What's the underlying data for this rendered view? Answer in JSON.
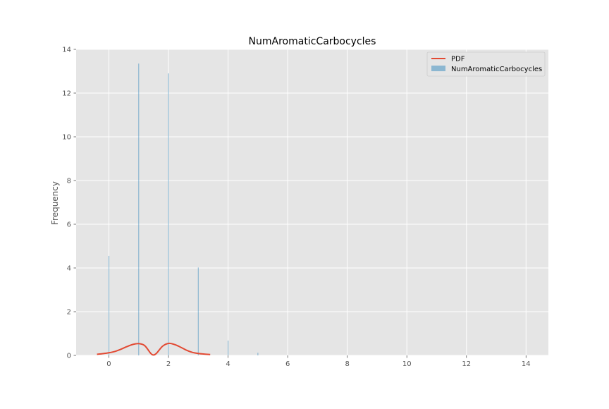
{
  "chart_data": {
    "type": "bar",
    "title": "NumAromaticCarbocycles",
    "xlabel": "",
    "ylabel": "Frequency",
    "xlim": [
      -1.1,
      14.75
    ],
    "ylim": [
      0,
      14
    ],
    "x_ticks": [
      0,
      2,
      4,
      6,
      8,
      10,
      12,
      14
    ],
    "y_ticks": [
      0,
      2,
      4,
      6,
      8,
      10,
      12,
      14
    ],
    "grid": true,
    "legend_position": "top-right",
    "legend": [
      "PDF",
      "NumAromaticCarbocycles"
    ],
    "colors": {
      "histogram": "#348ABD",
      "pdf": "#E24A33",
      "background": "#E5E5E5",
      "grid": "#FFFFFF"
    },
    "histogram": {
      "name": "NumAromaticCarbocycles",
      "bin_width": 0.028,
      "x": [
        0,
        1,
        2,
        3,
        4,
        5
      ],
      "values": [
        4.55,
        13.35,
        12.9,
        4.02,
        0.68,
        0.12
      ]
    },
    "pdf": {
      "name": "PDF",
      "x": [
        -0.4,
        -0.2,
        0.0,
        0.2,
        0.4,
        0.6,
        0.8,
        1.0,
        1.2,
        1.4,
        1.5,
        1.6,
        1.8,
        2.0,
        2.2,
        2.4,
        2.6,
        2.8,
        3.0,
        3.2,
        3.4
      ],
      "y": [
        0.05,
        0.08,
        0.12,
        0.18,
        0.28,
        0.4,
        0.5,
        0.54,
        0.45,
        0.1,
        0.02,
        0.1,
        0.42,
        0.55,
        0.5,
        0.38,
        0.24,
        0.14,
        0.09,
        0.06,
        0.04
      ]
    }
  }
}
